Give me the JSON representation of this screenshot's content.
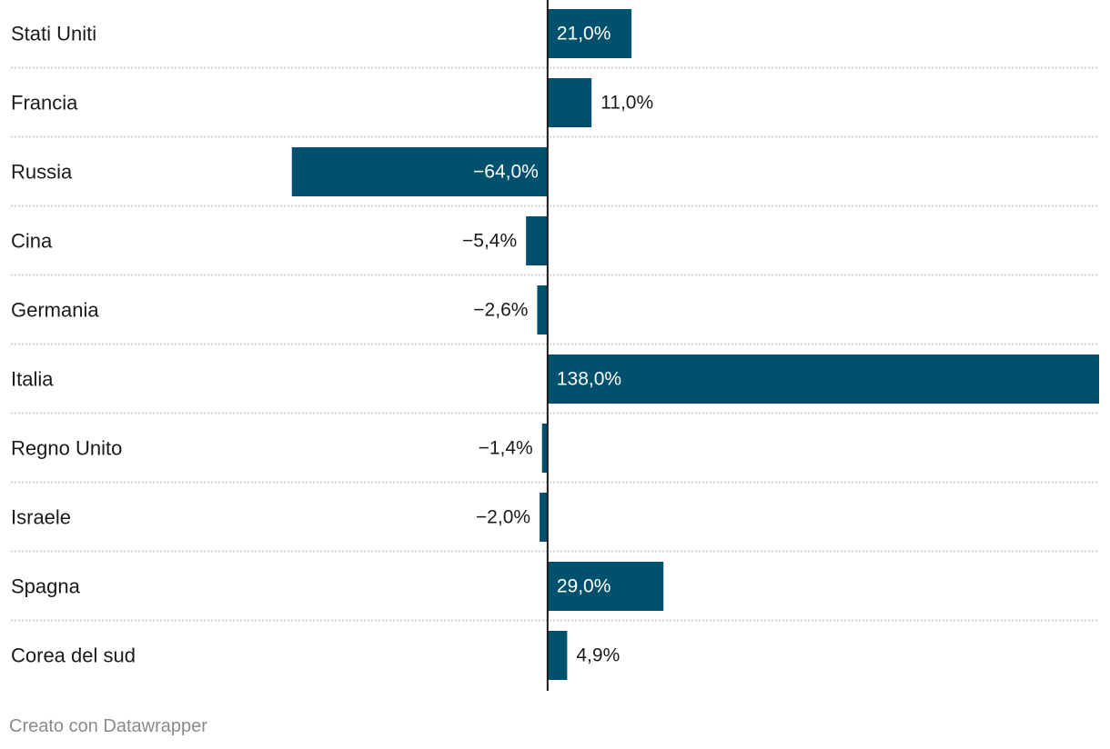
{
  "chart_data": {
    "type": "bar",
    "orientation": "horizontal",
    "categories": [
      "Stati Uniti",
      "Francia",
      "Russia",
      "Cina",
      "Germania",
      "Italia",
      "Regno Unito",
      "Israele",
      "Spagna",
      "Corea del sud"
    ],
    "values": [
      21.0,
      11.0,
      -64.0,
      -5.4,
      -2.6,
      138.0,
      -1.4,
      -2.0,
      29.0,
      4.9
    ],
    "value_labels": [
      "21,0%",
      "11,0%",
      "−64,0%",
      "−5,4%",
      "−2,6%",
      "138,0%",
      "−1,4%",
      "−2,0%",
      "29,0%",
      "4,9%"
    ],
    "xlim": [
      -96.5,
      138.0
    ],
    "bar_color": "#00506e",
    "grid": false,
    "legend": "none"
  },
  "footer": {
    "credit": "Creato con Datawrapper"
  }
}
